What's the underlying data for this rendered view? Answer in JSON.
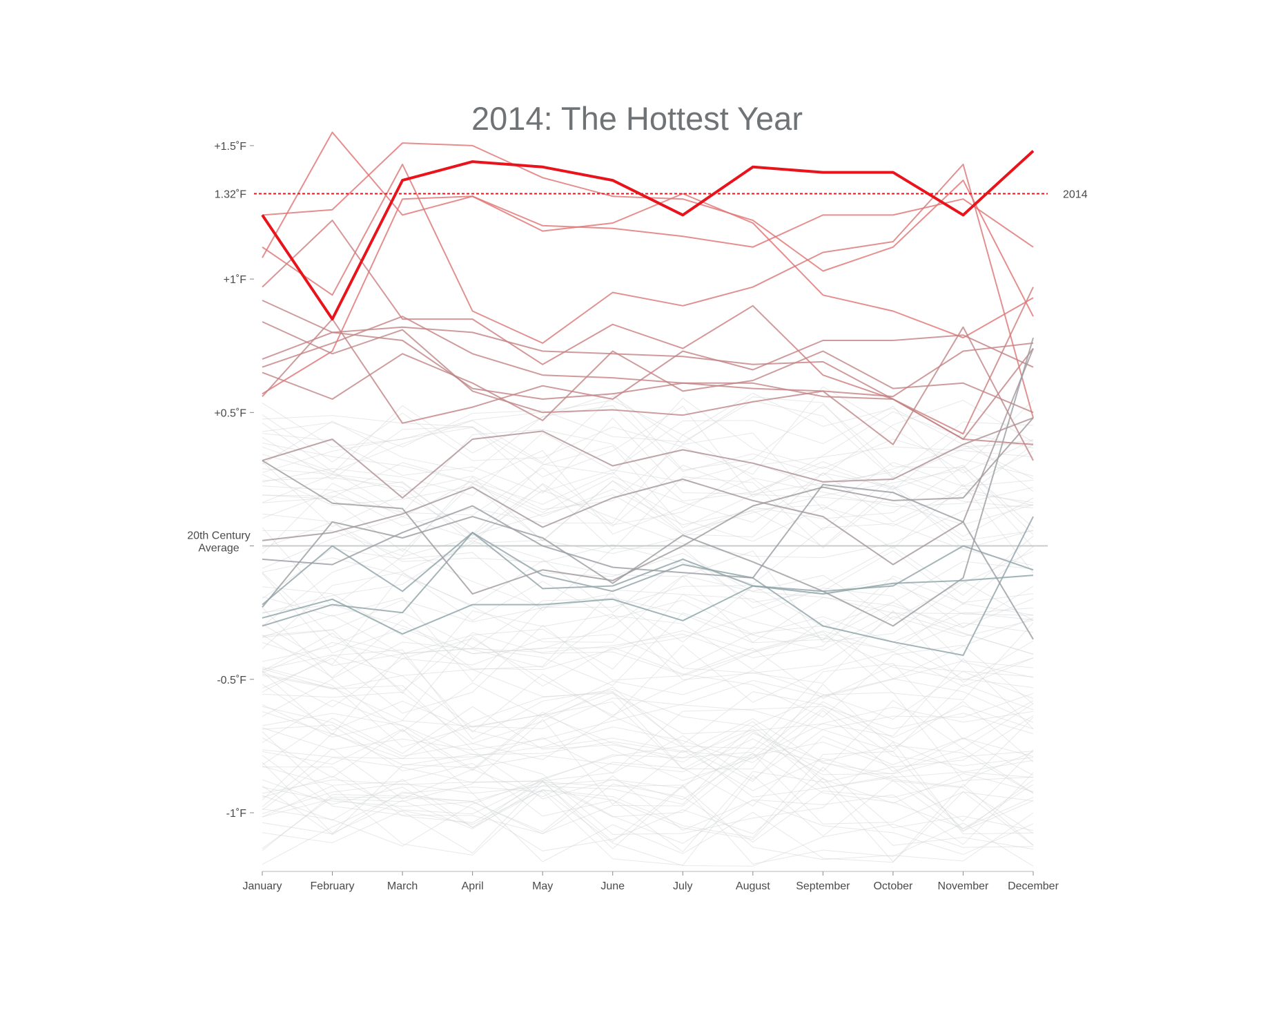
{
  "chart_data": {
    "type": "line",
    "title": "2014: The Hottest Year",
    "xlabel": "",
    "ylabel": "",
    "categories": [
      "January",
      "February",
      "March",
      "April",
      "May",
      "June",
      "July",
      "August",
      "September",
      "October",
      "November",
      "December"
    ],
    "ylim": [
      -1.22,
      1.58
    ],
    "y_ticks": [
      {
        "value": 1.5,
        "label": "+1.5˚F"
      },
      {
        "value": 1.0,
        "label": "+1˚F"
      },
      {
        "value": 0.5,
        "label": "+0.5˚F"
      },
      {
        "value": 0.0,
        "label": "20th Century Average",
        "lines": [
          "20th Century",
          "Average"
        ]
      },
      {
        "value": -0.5,
        "label": "-0.5˚F"
      },
      {
        "value": -1.0,
        "label": "-1˚F"
      }
    ],
    "reference": {
      "value": 1.32,
      "label": "1.32˚F",
      "series_label": "2014",
      "color": "#e8131b"
    },
    "baseline": {
      "value": 0.0,
      "color": "#c9cccc"
    },
    "colors": {
      "highlight": "#e8131b",
      "warm": "#e07070",
      "cool": "#8aa3a8",
      "background": "#d4d6d7",
      "title": "#6f7375"
    },
    "grid": false,
    "series": [
      {
        "name": "2014",
        "highlight": true,
        "values": [
          1.24,
          0.85,
          1.37,
          1.44,
          1.42,
          1.37,
          1.24,
          1.42,
          1.4,
          1.4,
          1.24,
          1.48
        ]
      },
      {
        "values": [
          1.24,
          1.26,
          1.51,
          1.5,
          1.38,
          1.31,
          1.3,
          1.22,
          1.03,
          1.12,
          1.37,
          0.86
        ]
      },
      {
        "values": [
          1.08,
          1.55,
          1.24,
          1.31,
          1.18,
          1.21,
          1.32,
          1.21,
          0.94,
          0.88,
          0.78,
          0.93
        ]
      },
      {
        "values": [
          0.57,
          0.73,
          1.3,
          1.31,
          1.2,
          1.19,
          1.16,
          1.12,
          1.24,
          1.24,
          1.3,
          1.12
        ]
      },
      {
        "values": [
          1.12,
          0.94,
          1.43,
          0.88,
          0.76,
          0.95,
          0.9,
          0.97,
          1.1,
          1.14,
          1.43,
          0.48
        ]
      },
      {
        "values": [
          0.97,
          1.22,
          0.85,
          0.85,
          0.68,
          0.83,
          0.74,
          0.9,
          0.64,
          0.55,
          0.42,
          0.97
        ]
      },
      {
        "values": [
          0.92,
          0.8,
          0.77,
          0.59,
          0.55,
          0.57,
          0.61,
          0.61,
          0.56,
          0.55,
          0.4,
          0.74
        ]
      },
      {
        "values": [
          0.84,
          0.72,
          0.81,
          0.58,
          0.5,
          0.51,
          0.49,
          0.54,
          0.58,
          0.38,
          0.82,
          0.32
        ]
      },
      {
        "values": [
          0.67,
          0.76,
          0.86,
          0.72,
          0.64,
          0.63,
          0.61,
          0.59,
          0.58,
          0.56,
          0.73,
          0.76
        ]
      },
      {
        "values": [
          0.65,
          0.55,
          0.72,
          0.61,
          0.47,
          0.73,
          0.58,
          0.62,
          0.73,
          0.59,
          0.61,
          0.5
        ]
      },
      {
        "values": [
          0.56,
          0.85,
          0.46,
          0.52,
          0.6,
          0.55,
          0.73,
          0.66,
          0.77,
          0.77,
          0.79,
          0.67
        ]
      },
      {
        "values": [
          0.7,
          0.8,
          0.82,
          0.8,
          0.73,
          0.72,
          0.71,
          0.68,
          0.69,
          0.55,
          0.4,
          0.38
        ]
      },
      {
        "values": [
          0.32,
          0.4,
          0.18,
          0.4,
          0.43,
          0.3,
          0.36,
          0.31,
          0.24,
          0.25,
          0.38,
          0.48
        ]
      },
      {
        "values": [
          0.32,
          0.16,
          0.14,
          -0.18,
          -0.09,
          -0.13,
          0.0,
          0.15,
          0.22,
          0.17,
          0.18,
          0.48
        ]
      },
      {
        "values": [
          0.02,
          0.05,
          0.12,
          0.22,
          0.07,
          0.18,
          0.25,
          0.17,
          0.11,
          -0.07,
          0.09,
          0.74
        ]
      },
      {
        "values": [
          -0.23,
          0.09,
          0.03,
          0.11,
          0.03,
          -0.14,
          0.04,
          -0.06,
          -0.17,
          -0.3,
          -0.12,
          0.78
        ]
      },
      {
        "values": [
          -0.22,
          0.0,
          -0.17,
          0.05,
          -0.11,
          -0.17,
          -0.07,
          -0.12,
          -0.3,
          -0.36,
          -0.41,
          0.11
        ]
      },
      {
        "values": [
          -0.05,
          -0.07,
          0.05,
          0.15,
          0.0,
          -0.08,
          -0.1,
          -0.12,
          0.23,
          0.2,
          0.09,
          -0.35
        ]
      },
      {
        "values": [
          -0.3,
          -0.22,
          -0.25,
          0.05,
          -0.16,
          -0.15,
          -0.05,
          -0.15,
          -0.17,
          -0.15,
          0.0,
          -0.09
        ]
      },
      {
        "values": [
          -0.27,
          -0.2,
          -0.33,
          -0.22,
          -0.22,
          -0.2,
          -0.28,
          -0.15,
          -0.18,
          -0.14,
          -0.13,
          -0.11
        ]
      }
    ]
  }
}
